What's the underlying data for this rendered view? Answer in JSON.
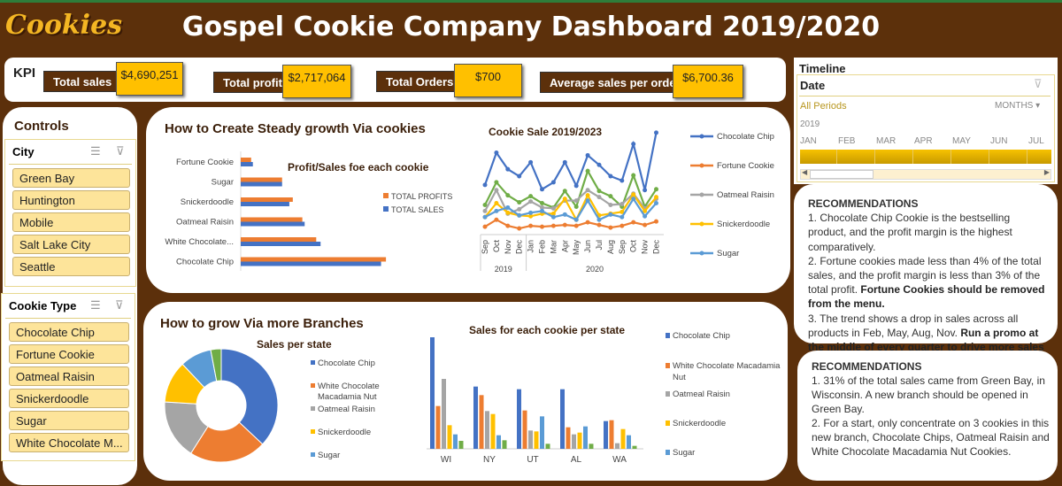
{
  "header": {
    "logo": "Cookies",
    "title": "Gospel Cookie Company Dashboard 2019/2020"
  },
  "kpi": {
    "label": "KPI",
    "items": [
      {
        "label": "Total sales",
        "value": "$4,690,251"
      },
      {
        "label": "Total profit",
        "value": "$2,717,064"
      },
      {
        "label": "Total Orders",
        "value": "$700"
      },
      {
        "label": "Average sales per order",
        "value": "$6,700.36"
      }
    ]
  },
  "timeline": {
    "title": "Timeline",
    "field": "Date",
    "period": "All Periods",
    "unit": "MONTHS",
    "year": "2019",
    "months": [
      "JAN",
      "FEB",
      "MAR",
      "APR",
      "MAY",
      "JUN",
      "JUL"
    ]
  },
  "controls": {
    "title": "Controls",
    "city": {
      "label": "City",
      "items": [
        "Green Bay",
        "Huntington",
        "Mobile",
        "Salt Lake City",
        "Seattle"
      ]
    },
    "cookie": {
      "label": "Cookie Type",
      "items": [
        "Chocolate Chip",
        "Fortune Cookie",
        "Oatmeal Raisin",
        "Snickerdoodle",
        "Sugar",
        "White Chocolate M..."
      ]
    }
  },
  "section1": {
    "title": "How to Create Steady growth Via cookies"
  },
  "section2": {
    "title": "How to grow Via more Branches"
  },
  "colors": {
    "blue": "#4472c4",
    "orange": "#ed7d31",
    "gray": "#a5a5a5",
    "yellow": "#ffc000",
    "lightblue": "#5b9bd5",
    "green": "#70ad47",
    "brown": "#5c300b"
  },
  "chart_data": [
    {
      "type": "bar",
      "orientation": "horizontal",
      "title": "Profit/Sales foe each cookie",
      "categories": [
        "Fortune Cookie",
        "Sugar",
        "Snickerdoodle",
        "Oatmeal Raisin",
        "White Chocolate...",
        "Chocolate Chip"
      ],
      "series": [
        {
          "name": "TOTAL PROFITS",
          "values": [
            36,
            143,
            180,
            213,
            261,
            502
          ]
        },
        {
          "name": "TOTAL SALES",
          "values": [
            42,
            143,
            168,
            221,
            276,
            485
          ]
        }
      ],
      "legend": "right"
    },
    {
      "type": "line",
      "title": "Cookie Sale 2019/2023",
      "categories": [
        "Sep",
        "Oct",
        "Nov",
        "Dec",
        "Jan",
        "Feb",
        "Mar",
        "Apr",
        "May",
        "Jun",
        "Jul",
        "Aug",
        "Sep",
        "Oct",
        "Nov",
        "Dec"
      ],
      "year_groups": [
        {
          "label": "2019",
          "count": 4
        },
        {
          "label": "2020",
          "count": 12
        }
      ],
      "series": [
        {
          "name": "Chocolate Chip",
          "values": [
            53,
            90,
            71,
            63,
            79,
            48,
            56,
            79,
            52,
            87,
            76,
            63,
            58,
            100,
            47,
            113
          ]
        },
        {
          "name": "Fortune Cookie",
          "values": [
            5,
            13,
            6,
            3,
            6,
            5,
            6,
            7,
            6,
            10,
            7,
            4,
            6,
            10,
            7,
            11
          ]
        },
        {
          "name": "Oatmeal Raisin",
          "values": [
            23,
            47,
            20,
            25,
            34,
            27,
            26,
            35,
            35,
            47,
            39,
            30,
            31,
            43,
            26,
            37
          ]
        },
        {
          "name": "Snickerdoodle",
          "values": [
            16,
            32,
            21,
            18,
            17,
            20,
            20,
            37,
            13,
            41,
            18,
            20,
            22,
            42,
            23,
            39
          ]
        },
        {
          "name": "Sugar",
          "values": [
            16,
            23,
            27,
            18,
            21,
            23,
            16,
            19,
            13,
            35,
            13,
            19,
            16,
            37,
            17,
            32
          ]
        },
        {
          "values": [
            30,
            56,
            41,
            33,
            40,
            32,
            27,
            46,
            28,
            69,
            46,
            40,
            28,
            64,
            28,
            48
          ]
        }
      ],
      "legend": "right"
    },
    {
      "type": "pie",
      "donut": true,
      "title": "Sales per state",
      "labels": [
        "Chocolate Chip",
        "White Chocolate Macadamia Nut",
        "Oatmeal Raisin",
        "Snickerdoodle",
        "Sugar",
        ""
      ],
      "values": [
        37,
        22,
        17,
        12,
        9,
        3
      ],
      "legend": "right"
    },
    {
      "type": "bar",
      "title": "Sales for each cookie per state",
      "categories": [
        "WI",
        "NY",
        "UT",
        "AL",
        "WA"
      ],
      "series": [
        {
          "name": "Chocolate Chip",
          "values": [
            378,
            211,
            202,
            202,
            94
          ]
        },
        {
          "name": "White Chocolate Macadamia Nut",
          "values": [
            145,
            182,
            130,
            73,
            97
          ]
        },
        {
          "name": "Oatmeal Raisin",
          "values": [
            237,
            128,
            62,
            49,
            19
          ]
        },
        {
          "name": "Snickerdoodle",
          "values": [
            80,
            118,
            59,
            55,
            67
          ]
        },
        {
          "name": "Sugar",
          "values": [
            49,
            46,
            110,
            76,
            46
          ]
        },
        {
          "values": [
            27,
            29,
            17,
            17,
            10
          ]
        }
      ],
      "legend": "right"
    }
  ],
  "rec1": {
    "title": "RECOMMENDATIONS",
    "p1": "1. Chocolate Chip Cookie is the bestselling product, and the profit margin is the highest comparatively.",
    "p2": "2. Fortune cookies made less than 4% of the total sales, and the profit margin is less than 3% of the total profit.",
    "p2b": "Fortune Cookies should be removed from the menu.",
    "p3": "3. The trend shows a drop in sales across all products in Feb, May, Aug, Nov.",
    "p3b": "Run a promo at the middle of every quarter to drive more sales"
  },
  "rec2": {
    "title": "RECOMMENDATIONS",
    "p1": "1. 31% of the total sales came from Green Bay, in Wisconsin. A new branch should be opened in Green Bay.",
    "p2": "2. For a start, only concentrate on 3 cookies in this new branch, Chocolate Chips, Oatmeal Raisin and White Chocolate Macadamia Nut Cookies."
  }
}
